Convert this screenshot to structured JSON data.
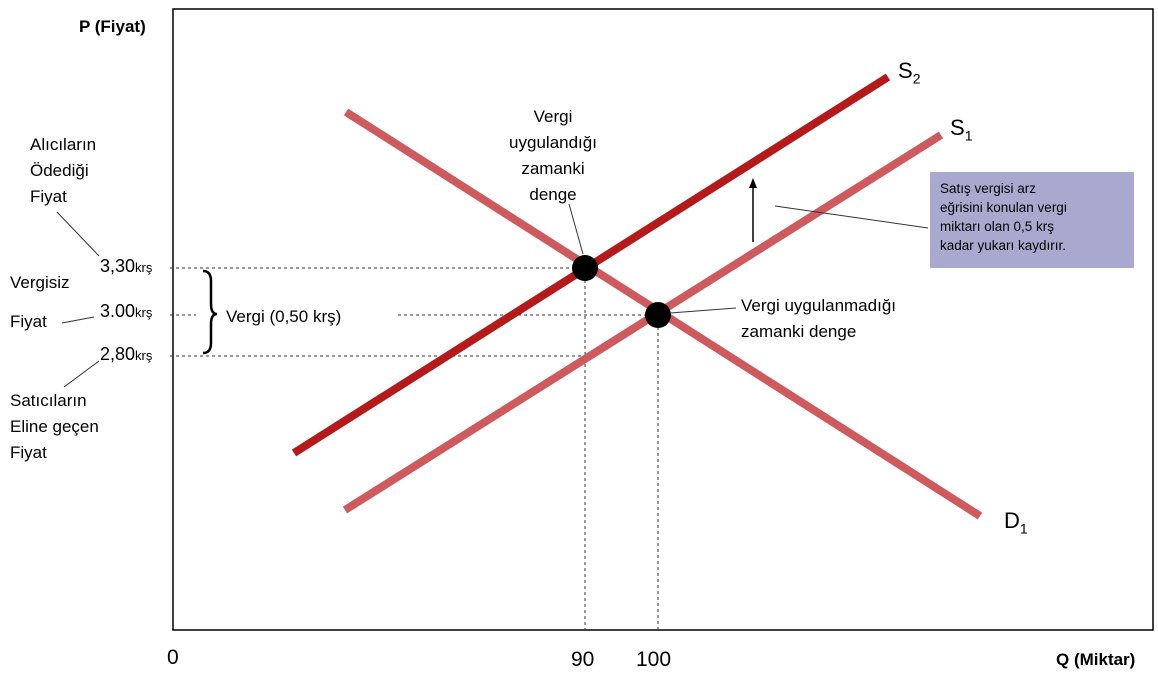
{
  "axes": {
    "y_title": "P (Fiyat)",
    "x_title": "Q (Miktar)",
    "origin": "0",
    "x_ticks": [
      "90",
      "100"
    ]
  },
  "price_labels": {
    "buyers": [
      "Alıcıların",
      "Ödediği",
      "Fiyat"
    ],
    "untaxed": [
      "Vergisiz",
      "Fiyat"
    ],
    "sellers": [
      "Satıcıların",
      "Eline geçen",
      "Fiyat"
    ],
    "p_high": "3,30",
    "p_mid": "3.00",
    "p_low": "2,80",
    "unit": "krş"
  },
  "tax_label": "Vergi (0,50 krş)",
  "equilibria": {
    "with_tax": [
      "Vergi",
      "uygulandığı",
      "zamanki",
      "denge"
    ],
    "without_tax": [
      "Vergi uygulanmadığı",
      "zamanki denge"
    ]
  },
  "curves": {
    "s2": "S",
    "s2_sub": "2",
    "s1": "S",
    "s1_sub": "1",
    "d1": "D",
    "d1_sub": "1"
  },
  "info_box": [
    "Satış vergisi arz",
    "eğrisini konulan vergi",
    "miktarı olan 0,5 krş",
    "kadar yukarı kaydırır."
  ],
  "colors": {
    "s2": "#b51a1a",
    "s1_d1": "#cf5a5e",
    "info_box": "#a9a9cf"
  }
}
